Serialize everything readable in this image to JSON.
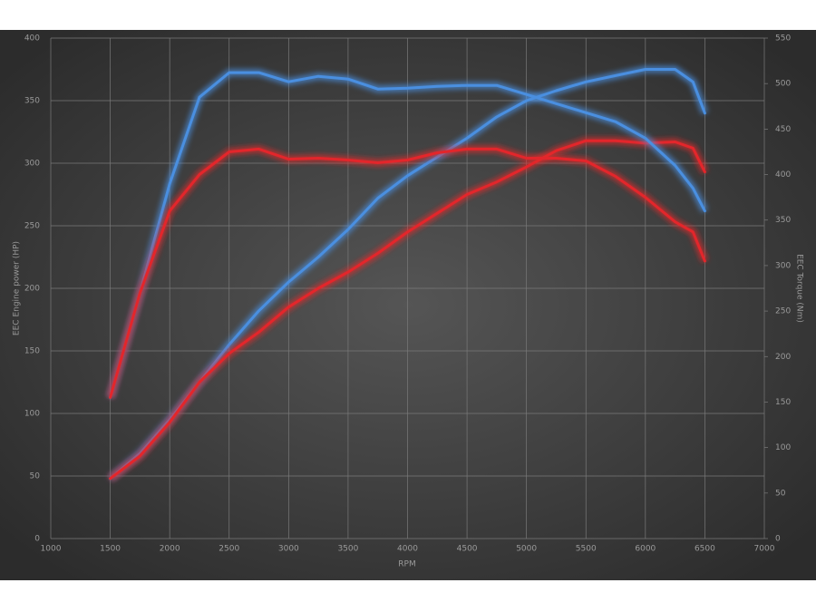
{
  "chart_data": {
    "type": "line",
    "xlabel": "RPM",
    "ylabel": "EEC Engine power (HP)",
    "y2label": "EEC Torque (Nm)",
    "x": [
      1500,
      1750,
      2000,
      2250,
      2500,
      2750,
      3000,
      3250,
      3500,
      3750,
      4000,
      4250,
      4500,
      4750,
      5000,
      5250,
      5500,
      5750,
      6000,
      6250,
      6400,
      6500
    ],
    "series": [
      {
        "color": "#4a8fe0",
        "values": [
          48,
          68,
          95,
          125,
          155,
          182,
          205,
          225,
          247,
          272,
          290,
          305,
          320,
          337,
          350,
          358,
          365,
          370,
          375,
          375,
          365,
          340
        ]
      },
      {
        "color": "#e3262b",
        "values": [
          48,
          66,
          93,
          125,
          148,
          165,
          185,
          200,
          213,
          228,
          245,
          260,
          275,
          285,
          297,
          310,
          318,
          318,
          316,
          317,
          312,
          293
        ]
      },
      {
        "color": "#4a8fe0",
        "axis": "y2",
        "values": [
          155,
          270,
          390,
          485,
          512,
          512,
          502,
          508,
          505,
          494,
          495,
          497,
          498,
          498,
          488,
          478,
          468,
          458,
          440,
          410,
          385,
          360
        ]
      },
      {
        "color": "#e3262b",
        "axis": "y2",
        "values": [
          155,
          270,
          360,
          400,
          425,
          428,
          417,
          418,
          416,
          413,
          416,
          424,
          428,
          428,
          418,
          418,
          415,
          398,
          375,
          348,
          337,
          305
        ]
      }
    ],
    "xlim": [
      1000,
      7000
    ],
    "xticks": [
      1000,
      1500,
      2000,
      2500,
      3000,
      3500,
      4000,
      4500,
      5000,
      5500,
      6000,
      6500,
      7000
    ],
    "ylim": [
      0,
      400
    ],
    "yticks": [
      0,
      50,
      100,
      150,
      200,
      250,
      300,
      350,
      400
    ],
    "y2lim": [
      0,
      550
    ],
    "y2ticks": [
      0,
      50,
      100,
      150,
      200,
      250,
      300,
      350,
      400,
      450,
      500,
      550
    ],
    "grid": true
  }
}
